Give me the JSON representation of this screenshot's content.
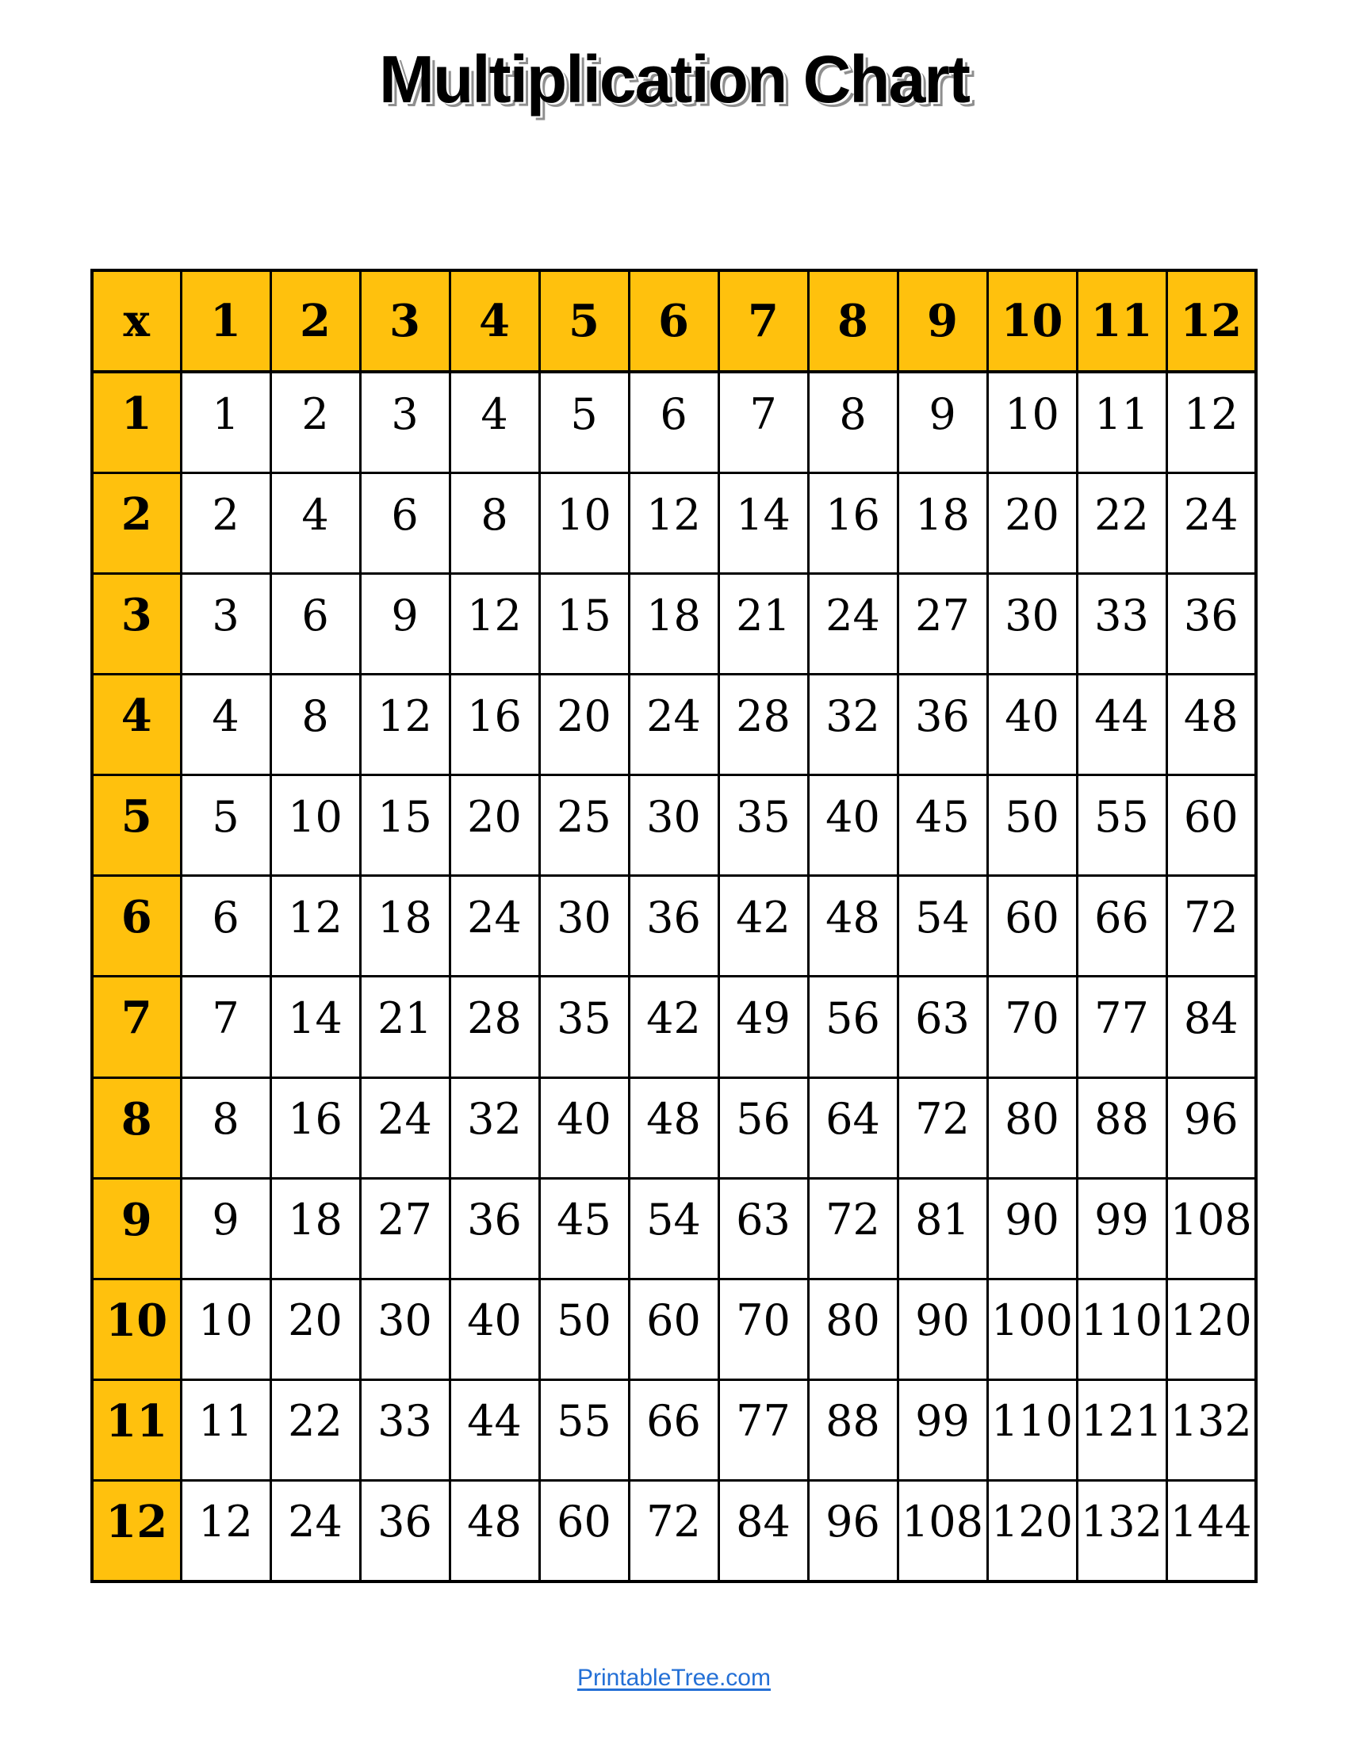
{
  "title": "Multiplication Chart",
  "colors": {
    "header_bg": "#FFC10D",
    "border": "#000000",
    "cell_bg": "#FFFFFF",
    "link": "#2470D6",
    "title_shadow": "#8F8F8F"
  },
  "footer": {
    "link_label": "PrintableTree.com"
  },
  "chart_data": {
    "type": "table",
    "title": "Multiplication Chart",
    "corner_label": "x",
    "column_headers": [
      "1",
      "2",
      "3",
      "4",
      "5",
      "6",
      "7",
      "8",
      "9",
      "10",
      "11",
      "12"
    ],
    "row_headers": [
      "1",
      "2",
      "3",
      "4",
      "5",
      "6",
      "7",
      "8",
      "9",
      "10",
      "11",
      "12"
    ],
    "rows": [
      [
        1,
        2,
        3,
        4,
        5,
        6,
        7,
        8,
        9,
        10,
        11,
        12
      ],
      [
        2,
        4,
        6,
        8,
        10,
        12,
        14,
        16,
        18,
        20,
        22,
        24
      ],
      [
        3,
        6,
        9,
        12,
        15,
        18,
        21,
        24,
        27,
        30,
        33,
        36
      ],
      [
        4,
        8,
        12,
        16,
        20,
        24,
        28,
        32,
        36,
        40,
        44,
        48
      ],
      [
        5,
        10,
        15,
        20,
        25,
        30,
        35,
        40,
        45,
        50,
        55,
        60
      ],
      [
        6,
        12,
        18,
        24,
        30,
        36,
        42,
        48,
        54,
        60,
        66,
        72
      ],
      [
        7,
        14,
        21,
        28,
        35,
        42,
        49,
        56,
        63,
        70,
        77,
        84
      ],
      [
        8,
        16,
        24,
        32,
        40,
        48,
        56,
        64,
        72,
        80,
        88,
        96
      ],
      [
        9,
        18,
        27,
        36,
        45,
        54,
        63,
        72,
        81,
        90,
        99,
        108
      ],
      [
        10,
        20,
        30,
        40,
        50,
        60,
        70,
        80,
        90,
        100,
        110,
        120
      ],
      [
        11,
        22,
        33,
        44,
        55,
        66,
        77,
        88,
        99,
        110,
        121,
        132
      ],
      [
        12,
        24,
        36,
        48,
        60,
        72,
        84,
        96,
        108,
        120,
        132,
        144
      ]
    ]
  }
}
